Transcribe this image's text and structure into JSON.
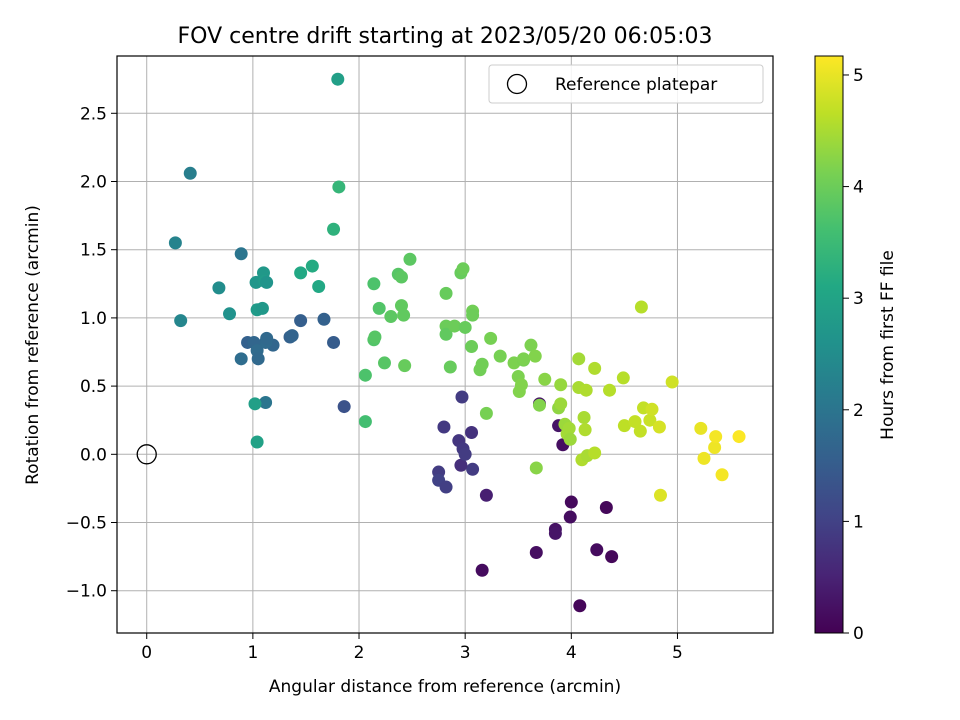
{
  "chart_data": {
    "type": "scatter",
    "title": "FOV centre drift starting at 2023/05/20 06:05:03",
    "xlabel": "Angular distance from reference (arcmin)",
    "ylabel": "Rotation from reference (arcmin)",
    "xlim": [
      -0.28,
      5.9
    ],
    "ylim": [
      -1.31,
      2.92
    ],
    "xticks": [
      0,
      1,
      2,
      3,
      4,
      5
    ],
    "yticks": [
      -1.0,
      -0.5,
      0.0,
      0.5,
      1.0,
      1.5,
      2.0,
      2.5
    ],
    "xtick_labels": [
      "0",
      "1",
      "2",
      "3",
      "4",
      "5"
    ],
    "ytick_labels": [
      "−1.0",
      "−0.5",
      "0.0",
      "0.5",
      "1.0",
      "1.5",
      "2.0",
      "2.5"
    ],
    "grid": true,
    "legend": {
      "position": "top-right",
      "entries": [
        {
          "label": "Reference platepar",
          "marker": "open-circle",
          "x": 0,
          "y": 0
        }
      ]
    },
    "colorbar": {
      "label": "Hours from first FF file",
      "colormap": "viridis",
      "range": [
        0,
        5.17
      ],
      "ticks": [
        0,
        1,
        2,
        3,
        4,
        5
      ],
      "tick_labels": [
        "0",
        "1",
        "2",
        "3",
        "4",
        "5"
      ]
    },
    "series": [
      {
        "colorscale": "viridis",
        "points": [
          [
            4.08,
            -1.11,
            0.08
          ],
          [
            3.16,
            -0.85,
            0.15
          ],
          [
            4.38,
            -0.75,
            0.1
          ],
          [
            4.24,
            -0.7,
            0.15
          ],
          [
            3.67,
            -0.72,
            0.2
          ],
          [
            3.85,
            -0.55,
            0.25
          ],
          [
            3.85,
            -0.58,
            0.3
          ],
          [
            4.33,
            -0.39,
            0.1
          ],
          [
            4.0,
            -0.35,
            0.12
          ],
          [
            3.99,
            -0.46,
            0.18
          ],
          [
            3.2,
            -0.3,
            0.45
          ],
          [
            3.7,
            0.37,
            0.25
          ],
          [
            3.88,
            0.21,
            0.3
          ],
          [
            3.92,
            0.07,
            0.2
          ],
          [
            3.07,
            -0.11,
            0.9
          ],
          [
            2.96,
            -0.08,
            0.7
          ],
          [
            2.94,
            0.1,
            0.8
          ],
          [
            2.98,
            0.04,
            0.85
          ],
          [
            3.0,
            0.0,
            0.9
          ],
          [
            3.06,
            0.16,
            0.75
          ],
          [
            2.8,
            0.2,
            0.85
          ],
          [
            2.75,
            -0.13,
            0.9
          ],
          [
            2.75,
            -0.19,
            1.0
          ],
          [
            2.82,
            -0.24,
            0.95
          ],
          [
            2.97,
            0.42,
            0.9
          ],
          [
            1.86,
            0.35,
            1.3
          ],
          [
            1.76,
            0.82,
            1.5
          ],
          [
            1.67,
            0.99,
            1.6
          ],
          [
            1.45,
            0.98,
            1.55
          ],
          [
            1.35,
            0.86,
            1.6
          ],
          [
            1.37,
            0.87,
            1.65
          ],
          [
            1.19,
            0.8,
            1.7
          ],
          [
            1.12,
            0.82,
            1.8
          ],
          [
            1.13,
            0.85,
            1.75
          ],
          [
            0.95,
            0.82,
            1.6
          ],
          [
            1.01,
            0.82,
            1.7
          ],
          [
            1.04,
            0.76,
            1.8
          ],
          [
            1.05,
            0.7,
            1.75
          ],
          [
            0.89,
            0.7,
            1.85
          ],
          [
            1.12,
            0.38,
            2.0
          ],
          [
            0.89,
            1.47,
            2.0
          ],
          [
            0.41,
            2.06,
            2.2
          ],
          [
            0.27,
            1.55,
            2.3
          ],
          [
            0.32,
            0.98,
            2.35
          ],
          [
            0.68,
            1.22,
            2.5
          ],
          [
            0.78,
            1.03,
            2.6
          ],
          [
            1.03,
            1.26,
            2.7
          ],
          [
            1.1,
            1.33,
            2.75
          ],
          [
            1.11,
            1.27,
            2.8
          ],
          [
            1.13,
            1.26,
            2.65
          ],
          [
            1.04,
            1.06,
            2.8
          ],
          [
            1.09,
            1.07,
            2.75
          ],
          [
            1.02,
            0.37,
            2.9
          ],
          [
            1.04,
            0.09,
            2.95
          ],
          [
            1.45,
            1.33,
            3.1
          ],
          [
            1.56,
            1.38,
            3.15
          ],
          [
            1.62,
            1.23,
            3.1
          ],
          [
            1.76,
            1.65,
            3.3
          ],
          [
            1.81,
            1.96,
            3.4
          ],
          [
            1.8,
            2.75,
            2.9
          ],
          [
            2.06,
            0.58,
            3.7
          ],
          [
            2.06,
            0.24,
            3.6
          ],
          [
            2.14,
            1.25,
            3.7
          ],
          [
            2.14,
            0.84,
            3.75
          ],
          [
            2.15,
            0.86,
            3.8
          ],
          [
            2.19,
            1.07,
            3.75
          ],
          [
            2.24,
            0.67,
            3.8
          ],
          [
            2.3,
            1.01,
            3.85
          ],
          [
            2.37,
            1.32,
            3.8
          ],
          [
            2.4,
            1.3,
            3.85
          ],
          [
            2.4,
            1.09,
            3.9
          ],
          [
            2.42,
            1.02,
            3.9
          ],
          [
            2.43,
            0.65,
            3.95
          ],
          [
            2.48,
            1.43,
            3.85
          ],
          [
            2.82,
            1.18,
            3.95
          ],
          [
            2.82,
            0.94,
            4.0
          ],
          [
            2.82,
            0.88,
            3.9
          ],
          [
            2.86,
            0.64,
            3.95
          ],
          [
            2.9,
            0.94,
            4.0
          ],
          [
            2.96,
            1.33,
            3.95
          ],
          [
            2.98,
            1.36,
            4.0
          ],
          [
            3.0,
            0.93,
            3.95
          ],
          [
            3.06,
            0.79,
            4.0
          ],
          [
            3.07,
            1.05,
            4.05
          ],
          [
            3.07,
            1.02,
            4.0
          ],
          [
            3.14,
            0.62,
            4.05
          ],
          [
            3.16,
            0.66,
            4.05
          ],
          [
            3.2,
            0.3,
            4.1
          ],
          [
            3.24,
            0.85,
            4.1
          ],
          [
            3.33,
            0.72,
            4.1
          ],
          [
            3.46,
            0.67,
            4.15
          ],
          [
            3.5,
            0.57,
            4.15
          ],
          [
            3.51,
            0.46,
            4.2
          ],
          [
            3.53,
            0.51,
            4.2
          ],
          [
            3.55,
            0.69,
            4.1
          ],
          [
            3.55,
            0.7,
            4.15
          ],
          [
            3.62,
            0.8,
            4.15
          ],
          [
            3.66,
            0.72,
            4.2
          ],
          [
            3.67,
            -0.1,
            4.25
          ],
          [
            3.7,
            0.36,
            4.2
          ],
          [
            3.75,
            0.55,
            4.25
          ],
          [
            3.88,
            0.34,
            4.3
          ],
          [
            3.9,
            0.51,
            4.35
          ],
          [
            3.9,
            0.37,
            4.4
          ],
          [
            3.94,
            0.22,
            4.4
          ],
          [
            3.96,
            0.15,
            4.45
          ],
          [
            3.98,
            0.19,
            4.45
          ],
          [
            3.99,
            0.11,
            4.4
          ],
          [
            4.07,
            0.7,
            4.45
          ],
          [
            4.07,
            0.49,
            4.5
          ],
          [
            4.1,
            -0.04,
            4.55
          ],
          [
            4.12,
            0.27,
            4.5
          ],
          [
            4.13,
            0.18,
            4.55
          ],
          [
            4.14,
            0.47,
            4.55
          ],
          [
            4.15,
            -0.01,
            4.5
          ],
          [
            4.22,
            0.01,
            4.6
          ],
          [
            4.22,
            0.63,
            4.55
          ],
          [
            4.36,
            0.47,
            4.6
          ],
          [
            4.49,
            0.56,
            4.6
          ],
          [
            4.5,
            0.21,
            4.65
          ],
          [
            4.6,
            0.24,
            4.7
          ],
          [
            4.65,
            0.17,
            4.7
          ],
          [
            4.66,
            1.08,
            4.6
          ],
          [
            4.68,
            0.34,
            4.7
          ],
          [
            4.74,
            0.25,
            4.75
          ],
          [
            4.76,
            0.33,
            4.8
          ],
          [
            4.83,
            0.2,
            4.85
          ],
          [
            4.84,
            -0.3,
            4.9
          ],
          [
            4.95,
            0.53,
            4.8
          ],
          [
            5.22,
            0.19,
            5.0
          ],
          [
            5.25,
            -0.03,
            5.05
          ],
          [
            5.35,
            0.05,
            5.05
          ],
          [
            5.36,
            0.13,
            5.1
          ],
          [
            5.42,
            -0.15,
            5.1
          ],
          [
            5.58,
            0.13,
            5.15
          ]
        ]
      }
    ]
  }
}
